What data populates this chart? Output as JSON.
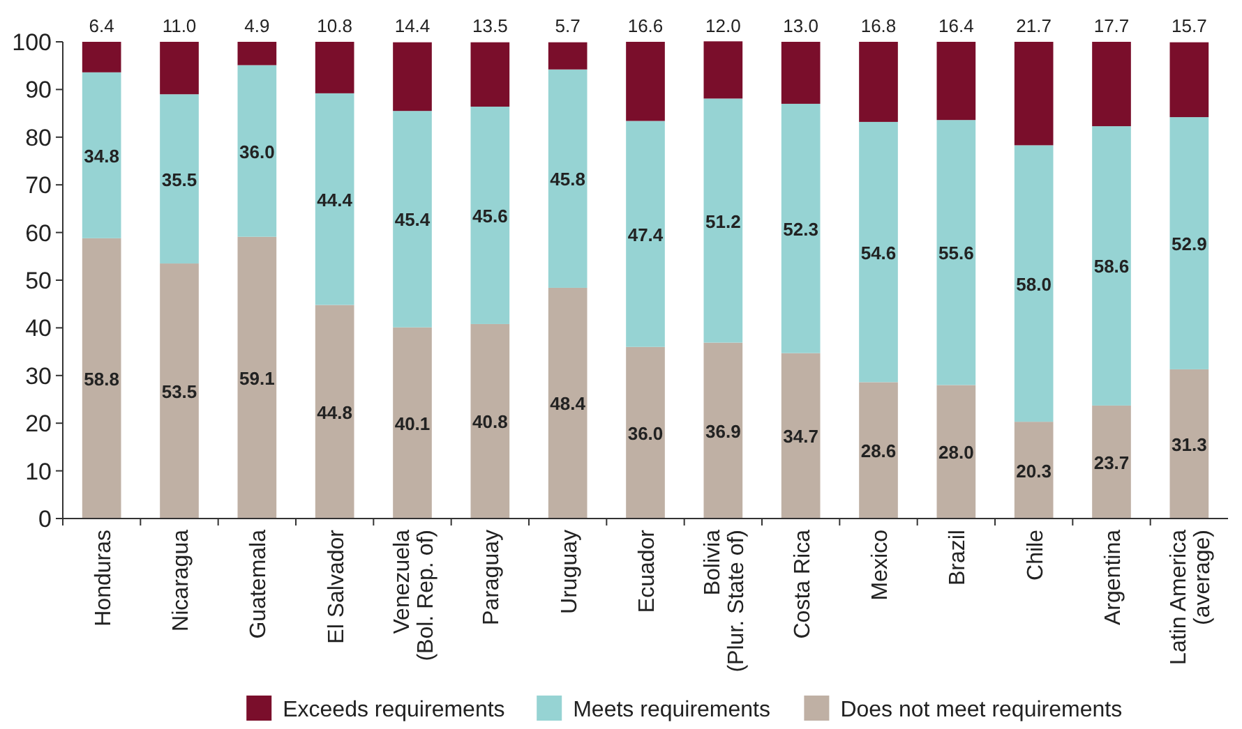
{
  "chart_data": {
    "type": "bar",
    "stacked": true,
    "categories": [
      "Honduras",
      "Nicaragua",
      "Guatemala",
      "El Salvador",
      "Venezuela\n(Bol. Rep. of)",
      "Paraguay",
      "Uruguay",
      "Ecuador",
      "Bolivia\n(Plur. State of)",
      "Costa Rica",
      "Mexico",
      "Brazil",
      "Chile",
      "Argentina",
      "Latin America\n(average)"
    ],
    "series": [
      {
        "name": "Does not meet requirements",
        "color": "#bfb0a4",
        "values": [
          58.8,
          53.5,
          59.1,
          44.8,
          40.1,
          40.8,
          48.4,
          36.0,
          36.9,
          34.7,
          28.6,
          28.0,
          20.3,
          23.7,
          31.3
        ],
        "value_labels": [
          "58.8",
          "53.5",
          "59.1",
          "44.8",
          "40.1",
          "40.8",
          "48.4",
          "36.0",
          "36.9",
          "34.7",
          "28.6",
          "28.0",
          "20.3",
          "23.7",
          "31.3"
        ]
      },
      {
        "name": "Meets requirements",
        "color": "#96d3d3",
        "values": [
          34.8,
          35.5,
          36.0,
          44.4,
          45.4,
          45.6,
          45.8,
          47.4,
          51.2,
          52.3,
          54.6,
          55.6,
          58.0,
          58.6,
          52.9
        ],
        "value_labels": [
          "34.8",
          "35.5",
          "36.0",
          "44.4",
          "45.4",
          "45.6",
          "45.8",
          "47.4",
          "51.2",
          "52.3",
          "54.6",
          "55.6",
          "58.0",
          "58.6",
          "52.9"
        ]
      },
      {
        "name": "Exceeds requirements",
        "color": "#7a0e2b",
        "values": [
          6.4,
          11.0,
          4.9,
          10.8,
          14.4,
          13.5,
          5.7,
          16.6,
          12.0,
          13.0,
          16.8,
          16.4,
          21.7,
          17.7,
          15.7
        ],
        "value_labels": [
          "6.4",
          "11.0",
          "4.9",
          "10.8",
          "14.4",
          "13.5",
          "5.7",
          "16.6",
          "12.0",
          "13.0",
          "16.8",
          "16.4",
          "21.7",
          "17.7",
          "15.7"
        ]
      }
    ],
    "ylim": [
      0,
      100
    ],
    "yticks": [
      0,
      10,
      20,
      30,
      40,
      50,
      60,
      70,
      80,
      90,
      100
    ],
    "legend": "bottom",
    "grid": false
  }
}
